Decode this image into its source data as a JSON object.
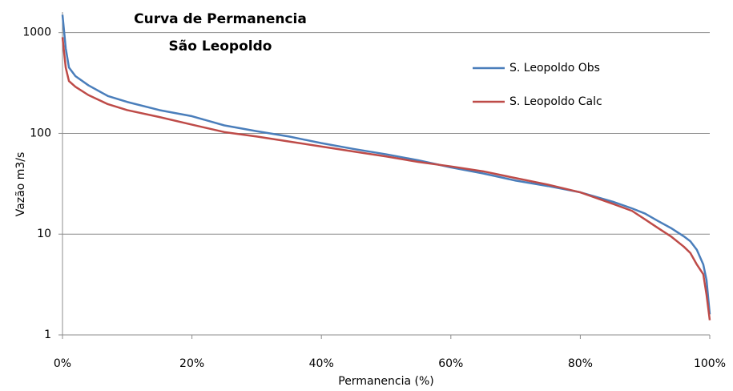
{
  "chart_data": {
    "type": "line",
    "title": "Curva de Permanencia",
    "subtitle": "São Leopoldo",
    "xlabel": "Permanencia (%)",
    "ylabel": "Vazão m3/s",
    "x": [
      0,
      0.5,
      1,
      2,
      4,
      7,
      10,
      15,
      20,
      25,
      30,
      35,
      40,
      45,
      50,
      55,
      60,
      65,
      70,
      75,
      80,
      85,
      88,
      90,
      92,
      94,
      96,
      97,
      98,
      99,
      99.5,
      100
    ],
    "series": [
      {
        "name": "S. Leopoldo Obs",
        "color": "#4a7ebb",
        "values": [
          1500,
          700,
          450,
          370,
          300,
          235,
          205,
          170,
          148,
          120,
          105,
          93,
          80,
          70,
          62,
          54,
          46,
          40,
          34,
          30,
          26,
          21,
          18,
          16,
          13.5,
          11.5,
          9.5,
          8.5,
          7,
          5,
          3.5,
          1.6
        ]
      },
      {
        "name": "S. Leopoldo Calc",
        "color": "#be4b48",
        "values": [
          900,
          450,
          330,
          290,
          240,
          195,
          170,
          145,
          122,
          103,
          93,
          83,
          74,
          66,
          59,
          52,
          47,
          42,
          36,
          31,
          26,
          20,
          17,
          14,
          11.5,
          9.5,
          7.5,
          6.5,
          5,
          4,
          2.5,
          1.4
        ]
      }
    ],
    "xlim": [
      0,
      100
    ],
    "xticks": [
      {
        "value": 0,
        "label": "0%"
      },
      {
        "value": 20,
        "label": "20%"
      },
      {
        "value": 40,
        "label": "40%"
      },
      {
        "value": 60,
        "label": "60%"
      },
      {
        "value": 80,
        "label": "80%"
      },
      {
        "value": 100,
        "label": "100%"
      }
    ],
    "ylim": [
      1,
      1600
    ],
    "yticks": [
      1,
      10,
      100,
      1000
    ],
    "log_y": true,
    "grid": true,
    "legend": "upper right"
  }
}
